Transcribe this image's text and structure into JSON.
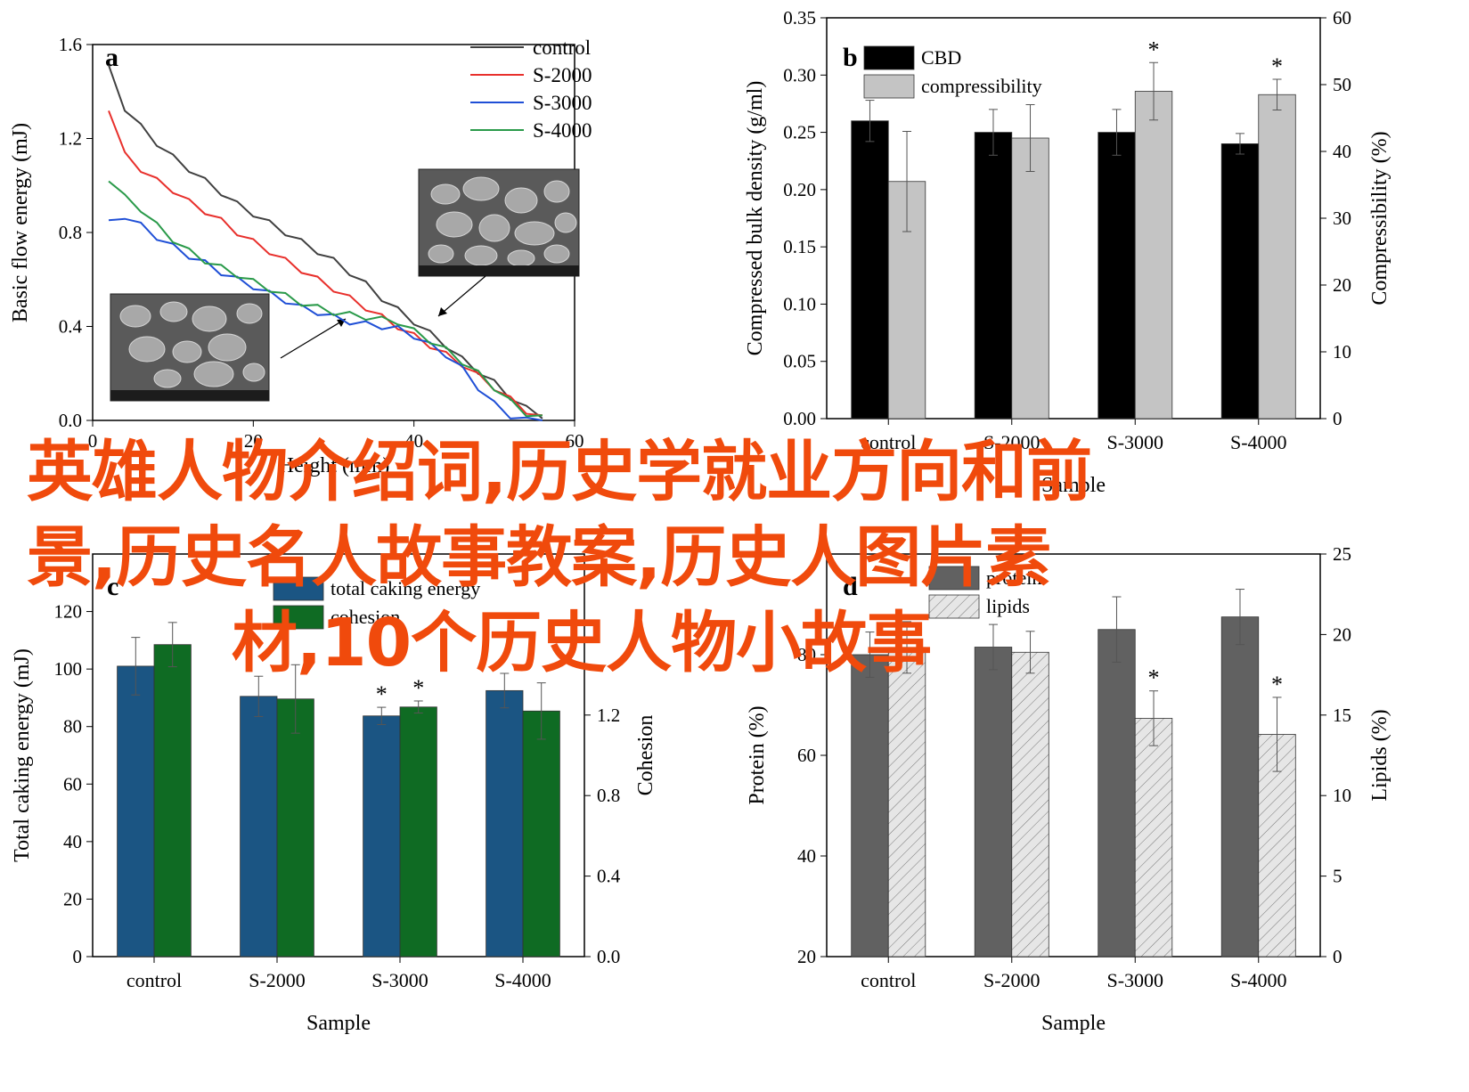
{
  "colors": {
    "black": "#000000",
    "bar_grey_light": "#c4c4c4",
    "control": "#404040",
    "s2000": "#e8302c",
    "s3000": "#1f4fd6",
    "s4000": "#2a9a4a",
    "blue_bar": "#1b5583",
    "green_bar": "#0f6b23",
    "dark_bar": "#616161",
    "hatch_bar": "#e6e6e6",
    "overlay_text": "#f04a0c"
  },
  "overlay": {
    "line1": "英雄人物介绍词,历史学就业方向和前",
    "line2": "景,历史名人故事教案,历史人图片素",
    "line3": "材,10个历史人物小故事"
  },
  "chart_data": [
    {
      "panel": "a",
      "type": "line",
      "xlabel": "Height (mm)",
      "ylabel": "Basic flow energy (mJ)",
      "xlim": [
        0,
        60
      ],
      "ylim": [
        0,
        1.6
      ],
      "xticks": [
        0,
        20,
        40,
        60
      ],
      "xtick_labels": [
        "0",
        "20",
        "40",
        "60"
      ],
      "yticks": [
        0.0,
        0.4,
        0.8,
        1.2,
        1.6
      ],
      "ytick_labels": [
        "0.0",
        "0.4",
        "0.8",
        "1.2",
        "1.6"
      ],
      "legend_position": "top-right",
      "series": [
        {
          "name": "control",
          "color": "#404040",
          "x": [
            2,
            4,
            6,
            8,
            10,
            12,
            14,
            16,
            18,
            20,
            22,
            24,
            26,
            28,
            30,
            32,
            34,
            36,
            38,
            40,
            42,
            44,
            46,
            48,
            50,
            52,
            54,
            56
          ],
          "y": [
            1.5,
            1.33,
            1.25,
            1.18,
            1.12,
            1.07,
            1.02,
            0.97,
            0.92,
            0.88,
            0.84,
            0.8,
            0.76,
            0.72,
            0.68,
            0.63,
            0.58,
            0.52,
            0.47,
            0.42,
            0.37,
            0.32,
            0.26,
            0.21,
            0.16,
            0.1,
            0.05,
            0.02
          ]
        },
        {
          "name": "S-2000",
          "color": "#e8302c",
          "x": [
            2,
            4,
            6,
            8,
            10,
            12,
            14,
            16,
            18,
            20,
            22,
            24,
            26,
            28,
            30,
            32,
            34,
            36,
            38,
            40,
            42,
            44,
            46,
            48,
            50,
            52,
            54,
            56
          ],
          "y": [
            1.33,
            1.13,
            1.07,
            1.02,
            0.98,
            0.93,
            0.89,
            0.85,
            0.8,
            0.76,
            0.72,
            0.68,
            0.64,
            0.6,
            0.56,
            0.52,
            0.48,
            0.44,
            0.4,
            0.36,
            0.32,
            0.28,
            0.24,
            0.19,
            0.14,
            0.09,
            0.04,
            0.01
          ]
        },
        {
          "name": "S-3000",
          "color": "#1f4fd6",
          "x": [
            2,
            4,
            6,
            8,
            10,
            12,
            14,
            16,
            18,
            20,
            22,
            24,
            26,
            28,
            30,
            32,
            34,
            36,
            38,
            40,
            42,
            44,
            46,
            48,
            50,
            52,
            54,
            56
          ],
          "y": [
            0.84,
            0.87,
            0.83,
            0.78,
            0.74,
            0.7,
            0.67,
            0.63,
            0.6,
            0.57,
            0.54,
            0.51,
            0.48,
            0.46,
            0.44,
            0.42,
            0.41,
            0.4,
            0.39,
            0.36,
            0.32,
            0.28,
            0.22,
            0.14,
            0.07,
            0.02,
            0.0,
            0.0
          ]
        },
        {
          "name": "S-4000",
          "color": "#2a9a4a",
          "x": [
            2,
            4,
            6,
            8,
            10,
            12,
            14,
            16,
            18,
            20,
            22,
            24,
            26,
            28,
            30,
            32,
            34,
            36,
            38,
            40,
            42,
            44,
            46,
            48,
            50,
            52,
            54,
            56
          ],
          "y": [
            1.03,
            0.95,
            0.9,
            0.83,
            0.77,
            0.72,
            0.68,
            0.65,
            0.62,
            0.59,
            0.56,
            0.53,
            0.5,
            0.48,
            0.46,
            0.45,
            0.44,
            0.43,
            0.42,
            0.38,
            0.34,
            0.3,
            0.25,
            0.2,
            0.14,
            0.08,
            0.03,
            0.01
          ]
        }
      ]
    },
    {
      "panel": "b",
      "type": "bar",
      "categories": [
        "control",
        "S-2000",
        "S-3000",
        "S-4000"
      ],
      "xlabel": "Sample",
      "ylabel": "Compressed bulk density (g/ml)",
      "ylabel_right": "Compressibility (%)",
      "ylim": [
        0,
        0.35
      ],
      "ylim_right": [
        0,
        60
      ],
      "yticks": [
        0.0,
        0.05,
        0.1,
        0.15,
        0.2,
        0.25,
        0.3,
        0.35
      ],
      "ytick_labels": [
        "0.00",
        "0.05",
        "0.10",
        "0.15",
        "0.20",
        "0.25",
        "0.30",
        "0.35"
      ],
      "yticks_right": [
        0,
        10,
        20,
        30,
        40,
        50,
        60
      ],
      "ytick_labels_right": [
        "0",
        "10",
        "20",
        "30",
        "40",
        "50",
        "60"
      ],
      "legend_position": "top-left",
      "series": [
        {
          "name": "CBD",
          "axis": "left",
          "color": "#000000",
          "values": [
            0.26,
            0.25,
            0.25,
            0.24
          ],
          "errors": [
            0.018,
            0.02,
            0.02,
            0.009
          ],
          "markers": [
            "",
            "",
            "",
            ""
          ]
        },
        {
          "name": "compressibility",
          "axis": "right",
          "color": "#c4c4c4",
          "values": [
            35.5,
            42.0,
            49.0,
            48.5
          ],
          "errors": [
            7.5,
            5.0,
            4.3,
            2.3
          ],
          "markers": [
            "",
            "",
            "*",
            "*"
          ]
        }
      ]
    },
    {
      "panel": "c",
      "type": "bar",
      "categories": [
        "control",
        "S-2000",
        "S-3000",
        "S-4000"
      ],
      "xlabel": "Sample",
      "ylabel": "Total caking energy (mJ)",
      "ylabel_right": "Cohesion",
      "ylim": [
        0,
        140
      ],
      "ylim_right": [
        0,
        2.0
      ],
      "yticks": [
        0,
        20,
        40,
        60,
        80,
        100,
        120
      ],
      "ytick_labels": [
        "0",
        "20",
        "40",
        "60",
        "80",
        "100",
        "120"
      ],
      "yticks_right": [
        0.0,
        0.4,
        0.8,
        1.2
      ],
      "ytick_labels_right": [
        "0.0",
        "0.4",
        "0.8",
        "1.2"
      ],
      "legend_position": "top-center",
      "series": [
        {
          "name": "total caking energy",
          "axis": "left",
          "color": "#1b5583",
          "values": [
            101,
            90.5,
            83.7,
            92.5
          ],
          "errors": [
            10,
            7,
            3,
            6
          ],
          "markers": [
            "",
            "",
            "*",
            ""
          ]
        },
        {
          "name": "cohesion",
          "axis": "right",
          "color": "#0f6b23",
          "values": [
            1.55,
            1.28,
            1.24,
            1.22
          ],
          "errors": [
            0.11,
            0.17,
            0.03,
            0.14
          ],
          "markers": [
            "",
            "",
            "*",
            ""
          ]
        }
      ]
    },
    {
      "panel": "d",
      "type": "bar",
      "categories": [
        "control",
        "S-2000",
        "S-3000",
        "S-4000"
      ],
      "xlabel": "Sample",
      "ylabel": "Protein (%)",
      "ylabel_right": "Lipids (%)",
      "ylim": [
        20,
        100
      ],
      "ylim_right": [
        0,
        25
      ],
      "yticks": [
        20,
        40,
        60,
        80
      ],
      "ytick_labels": [
        "20",
        "40",
        "60",
        "80"
      ],
      "yticks_right": [
        0,
        5,
        10,
        15,
        20,
        25
      ],
      "ytick_labels_right": [
        "0",
        "5",
        "10",
        "15",
        "20",
        "25"
      ],
      "legend_position": "top-left",
      "series": [
        {
          "name": "protein",
          "axis": "left",
          "color": "#616161",
          "values": [
            80,
            81.5,
            85,
            87.5
          ],
          "errors": [
            4.5,
            4.5,
            6.5,
            5.5
          ],
          "markers": [
            "",
            "",
            "",
            ""
          ]
        },
        {
          "name": "lipids",
          "axis": "right",
          "color": "#e6e6e6",
          "hatch": true,
          "values": [
            19.2,
            18.9,
            14.8,
            13.8
          ],
          "errors": [
            1.6,
            1.3,
            1.7,
            2.3
          ],
          "markers": [
            "",
            "",
            "*",
            "*"
          ]
        }
      ]
    }
  ]
}
